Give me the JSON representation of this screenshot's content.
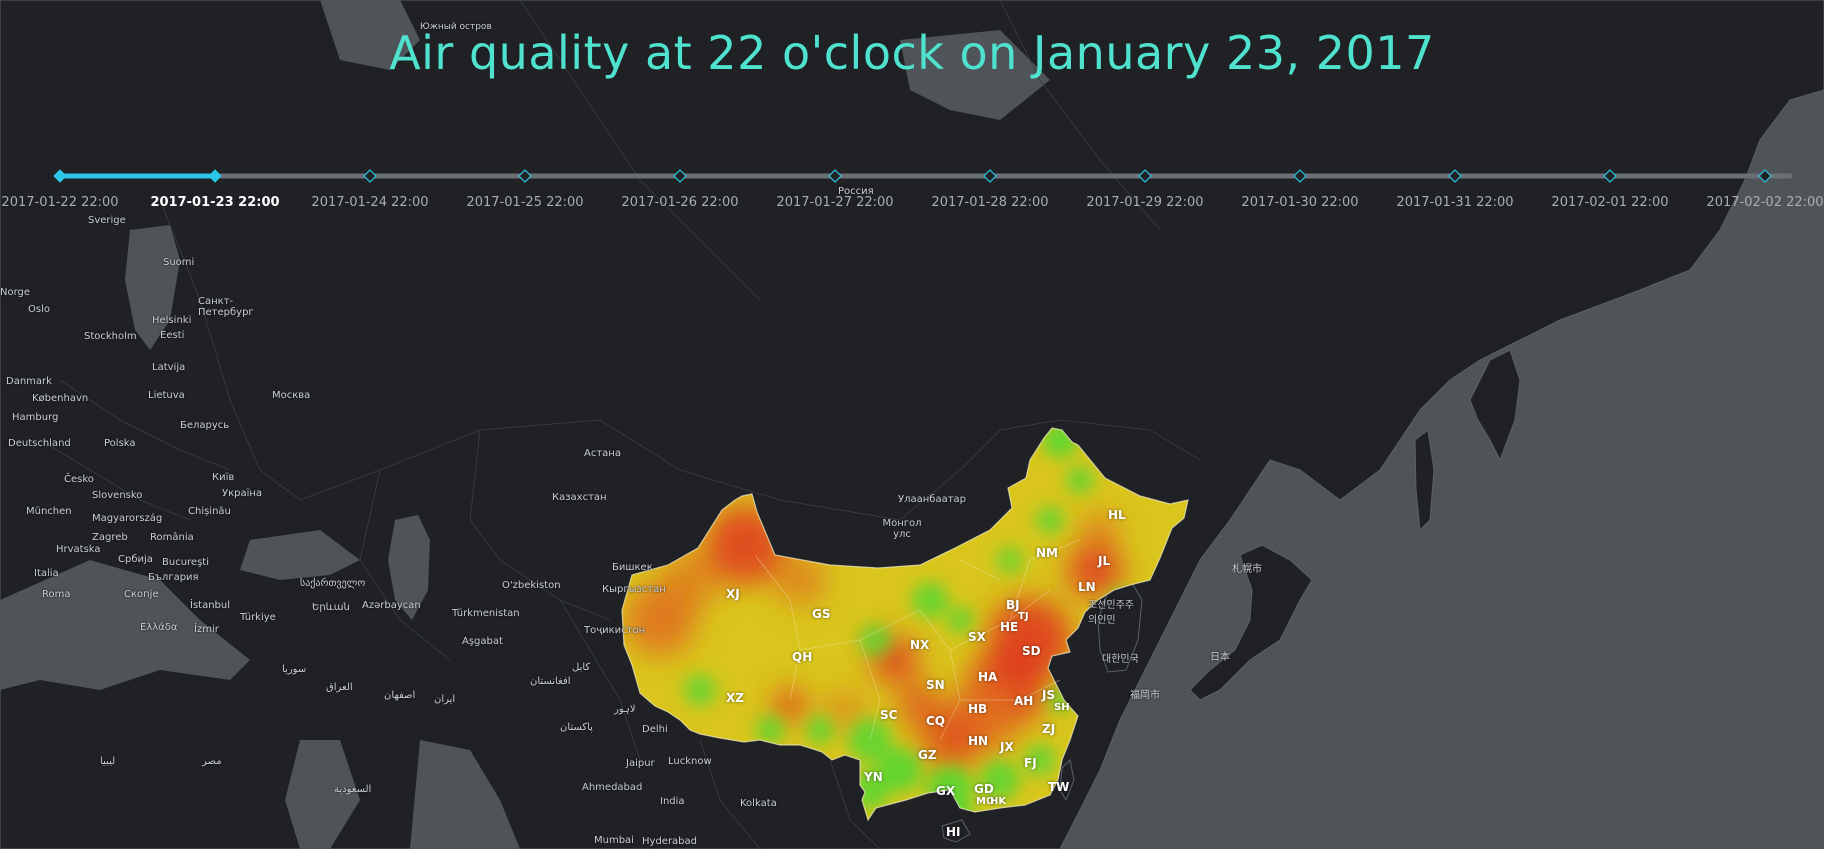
{
  "title": "Air quality at 22 o'clock on January 23, 2017",
  "colors": {
    "accent": "#4fe3cf",
    "timeline_active": "#2bc7e6",
    "timeline_track": "#6a6f75",
    "land": "#1f2125",
    "sea": "#4f5459",
    "aqi_good": "#57d632",
    "aqi_moderate": "#d9c51c",
    "aqi_poor": "#e0721f",
    "aqi_bad": "#e03a1f"
  },
  "timeline": {
    "current_index": 1,
    "dates": [
      "2017-01-22 22:00",
      "2017-01-23 22:00",
      "2017-01-24 22:00",
      "2017-01-25 22:00",
      "2017-01-26 22:00",
      "2017-01-27 22:00",
      "2017-01-28 22:00",
      "2017-01-29 22:00",
      "2017-01-30 22:00",
      "2017-01-31 22:00",
      "2017-02-01 22:00",
      "2017-02-02 22:00"
    ]
  },
  "basemap_labels": {
    "Южный остров": "Южный остров",
    "Sverige": "Sverige",
    "Suomi": "Suomi",
    "Norge": "Norge",
    "Oslo": "Oslo",
    "Helsinki": "Helsinki",
    "Санкт-Петербург": "Санкт-Петербург",
    "Stockholm": "Stockholm",
    "Eesti": "Eesti",
    "Latvija": "Latvija",
    "Danmark": "Danmark",
    "København": "København",
    "Lietuva": "Lietuva",
    "Москва": "Москва",
    "Hamburg": "Hamburg",
    "Беларусь": "Беларусь",
    "Deutschland": "Deutschland",
    "Polska": "Polska",
    "Česko": "Česko",
    "Київ": "Київ",
    "Slovensko": "Slovensko",
    "Україна": "Україна",
    "München": "München",
    "Magyarország": "Magyarország",
    "Chișinău": "Chișinău",
    "Zagreb": "Zagreb",
    "România": "România",
    "Hrvatska": "Hrvatska",
    "Србија": "Србија",
    "Bucureşti": "Bucureşti",
    "България": "България",
    "Italia": "Italia",
    "Roma": "Roma",
    "Скопје": "Скопје",
    "Ελλάδα": "Ελλάδα",
    "İstanbul": "İstanbul",
    "İzmir": "İzmir",
    "Türkiye": "Türkiye",
    "საქართველო": "საქართველო",
    "Երևան": "Երևան",
    "Azərbaycan": "Azərbaycan",
    "Türkmenistan": "Türkmenistan",
    "Aşgabat": "Aşgabat",
    "Россия": "Россия",
    "Астана": "Астана",
    "Казахстан": "Казахстан",
    "O'zbekiston": "O'zbekiston",
    "Бишкек": "Бишкек",
    "Кыргызстан": "Кыргызстан",
    "Тоҷикистон": "Тоҷикистон",
    "Улаанбаатар": "Улаанбаатар",
    "Монгол улс": "Монгол улс",
    "札幌市": "札幌市",
    "日本": "日本",
    "대한민국": "대한민국",
    "福岡市": "福岡市",
    "조선민주주의인민": "조선민주주의인민",
    "Delhi": "Delhi",
    "Jaipur": "Jaipur",
    "Lucknow": "Lucknow",
    "Ahmedabad": "Ahmedabad",
    "India": "India",
    "Kolkata": "Kolkata",
    "Mumbai": "Mumbai",
    "Hyderabad": "Hyderabad",
    "مصر": "مصر",
    "ليبيا": "ليبيا",
    "سوريا": "سوريا",
    "العراق": "العراق",
    "ایران": "ایران",
    "السعودية": "السعودية",
    "اصفهان": "اصفهان",
    "کابل": "کابل",
    "افغانستان": "افغانستان",
    "پاکستان": "پاکستان",
    "لاہور": "لاہور"
  },
  "provinces": [
    "XJ",
    "XZ",
    "QH",
    "GS",
    "NX",
    "SN",
    "SC",
    "CQ",
    "YN",
    "GZ",
    "GX",
    "GD",
    "HN",
    "HB",
    "HA",
    "SD",
    "HE",
    "SX",
    "BJ",
    "TJ",
    "NM",
    "LN",
    "JL",
    "HL",
    "AH",
    "JS",
    "SH",
    "ZJ",
    "JX",
    "FJ",
    "TW",
    "HI",
    "MO",
    "HK"
  ]
}
